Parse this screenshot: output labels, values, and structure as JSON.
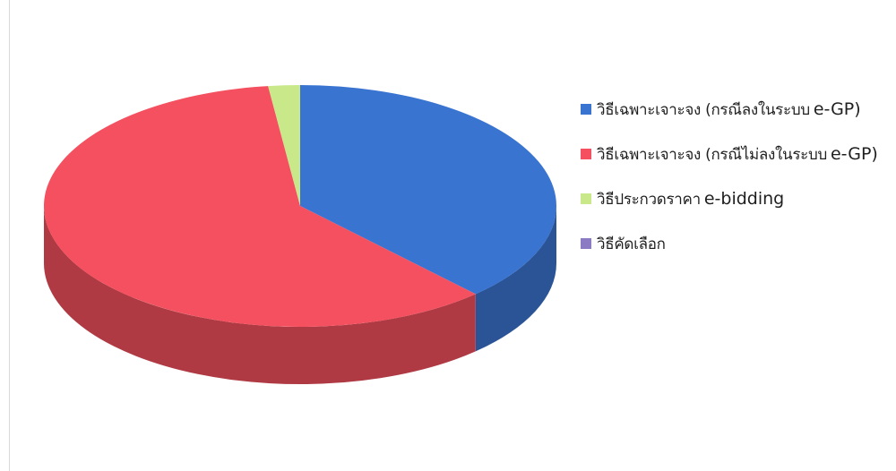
{
  "chart_data": {
    "type": "pie",
    "style": "3d",
    "title": "",
    "legend_position": "right",
    "slices": [
      {
        "label_th": "วิธีเฉพาะเจาะจง (กรณีลงในระบบ",
        "label_en": "e-GP)",
        "value": 38.0,
        "color": "#3a74d1"
      },
      {
        "label_th": "วิธีเฉพาะเจาะจง (กรณีไม่ลงในระบบ",
        "label_en": "e-GP)",
        "value": 60.0,
        "color": "#f4505f"
      },
      {
        "label_th": "วิธีประกวดราคา",
        "label_en": "e-bidding",
        "value": 2.0,
        "color": "#c9e88a"
      },
      {
        "label_th": "วิธีคัดเลือก",
        "label_en": "",
        "value": 0.0,
        "color": "#8a7bc2"
      }
    ]
  }
}
